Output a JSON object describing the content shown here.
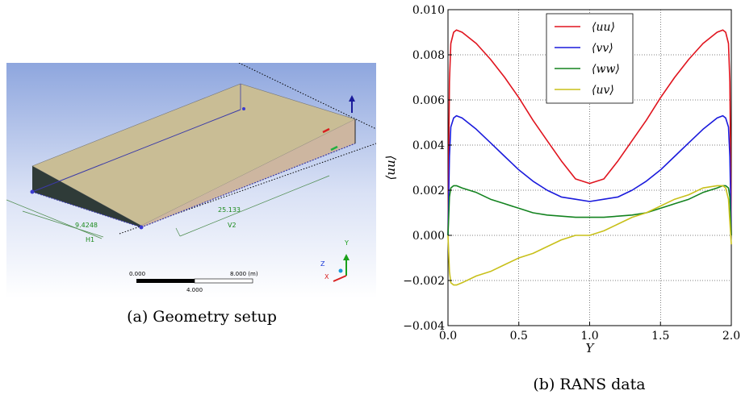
{
  "geometry": {
    "dim_v2": "25.133",
    "dim_v2_label": "V2",
    "dim_h1": "9.4248",
    "dim_h1_label": "H1",
    "scale_start": "0.000",
    "scale_mid": "4.000",
    "scale_end": "8.000 (m)",
    "axis_y": "Y",
    "axis_z": "Z",
    "axis_x": "X"
  },
  "captions": {
    "a": "(a) Geometry setup",
    "b": "(b) RANS data"
  },
  "chart_data": {
    "type": "line",
    "xlabel": "Y",
    "ylabel": "⟨uu⟩",
    "xlim": [
      0.0,
      2.0
    ],
    "ylim": [
      -0.004,
      0.01
    ],
    "xticks": [
      "0.0",
      "0.5",
      "1.0",
      "1.5",
      "2.0"
    ],
    "yticks": [
      "−0.004",
      "−0.002",
      "0.000",
      "0.002",
      "0.004",
      "0.006",
      "0.008",
      "0.010"
    ],
    "grid": true,
    "legend_position": "top-center",
    "x": [
      0.0,
      0.01,
      0.02,
      0.04,
      0.06,
      0.1,
      0.2,
      0.3,
      0.4,
      0.5,
      0.6,
      0.7,
      0.8,
      0.9,
      1.0,
      1.1,
      1.2,
      1.3,
      1.4,
      1.5,
      1.6,
      1.7,
      1.8,
      1.9,
      1.94,
      1.96,
      1.98,
      1.99,
      2.0
    ],
    "series": [
      {
        "name": "⟨uu⟩",
        "color": "#e0141e",
        "values": [
          0.0,
          0.0068,
          0.0085,
          0.009,
          0.0091,
          0.009,
          0.0085,
          0.0078,
          0.007,
          0.0061,
          0.0051,
          0.0042,
          0.0033,
          0.0025,
          0.0023,
          0.0025,
          0.0033,
          0.0042,
          0.0051,
          0.0061,
          0.007,
          0.0078,
          0.0085,
          0.009,
          0.0091,
          0.009,
          0.0085,
          0.0068,
          0.0
        ]
      },
      {
        "name": "⟨vv⟩",
        "color": "#1a1adc",
        "values": [
          0.0,
          0.0035,
          0.0048,
          0.0052,
          0.0053,
          0.0052,
          0.0047,
          0.0041,
          0.0035,
          0.0029,
          0.0024,
          0.002,
          0.0017,
          0.0016,
          0.0015,
          0.0016,
          0.0017,
          0.002,
          0.0024,
          0.0029,
          0.0035,
          0.0041,
          0.0047,
          0.0052,
          0.0053,
          0.0052,
          0.0048,
          0.0035,
          0.0
        ]
      },
      {
        "name": "⟨ww⟩",
        "color": "#13831f",
        "values": [
          0.0,
          0.0017,
          0.0021,
          0.0022,
          0.0022,
          0.0021,
          0.0019,
          0.0016,
          0.0014,
          0.0012,
          0.001,
          0.0009,
          0.00085,
          0.0008,
          0.0008,
          0.0008,
          0.00085,
          0.0009,
          0.001,
          0.0012,
          0.0014,
          0.0016,
          0.0019,
          0.0021,
          0.0022,
          0.0022,
          0.0021,
          0.0017,
          0.0
        ]
      },
      {
        "name": "⟨uv⟩",
        "color": "#c8c01a",
        "values": [
          0.0,
          -0.0016,
          -0.0021,
          -0.0022,
          -0.0022,
          -0.0021,
          -0.0018,
          -0.0016,
          -0.0013,
          -0.001,
          -0.0008,
          -0.0005,
          -0.0002,
          0.0,
          0.0,
          0.0002,
          0.0005,
          0.0008,
          0.001,
          0.0013,
          0.0016,
          0.0018,
          0.0021,
          0.0022,
          0.0022,
          0.0021,
          0.0016,
          0.0006,
          -0.0004
        ]
      }
    ]
  }
}
